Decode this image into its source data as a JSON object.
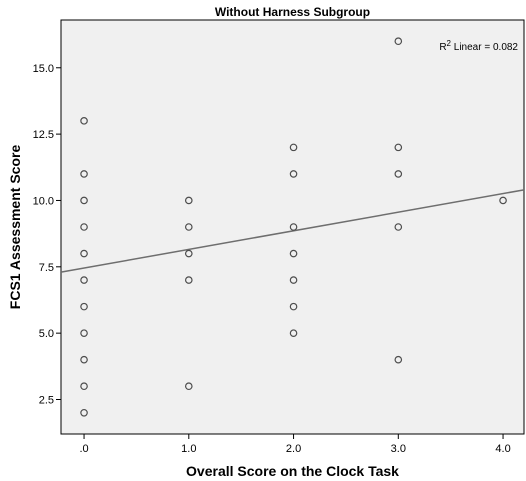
{
  "chart_data": {
    "type": "scatter",
    "title": "Without Harness Subgroup",
    "xlabel": "Overall Score on the Clock Task",
    "ylabel": "FCS1 Assessment Score",
    "xlim": [
      -0.22,
      4.2
    ],
    "ylim": [
      1.2,
      16.8
    ],
    "x_ticks": [
      {
        "value": 0,
        "label": ".0"
      },
      {
        "value": 1,
        "label": "1.0"
      },
      {
        "value": 2,
        "label": "2.0"
      },
      {
        "value": 3,
        "label": "3.0"
      },
      {
        "value": 4,
        "label": "4.0"
      }
    ],
    "y_ticks": [
      {
        "value": 2.5,
        "label": "2.5"
      },
      {
        "value": 5,
        "label": "5.0"
      },
      {
        "value": 7.5,
        "label": "7.5"
      },
      {
        "value": 10,
        "label": "10.0"
      },
      {
        "value": 12.5,
        "label": "12.5"
      },
      {
        "value": 15,
        "label": "15.0"
      }
    ],
    "grid": false,
    "background_color": "#f0f0f0",
    "point_color": "#4d4d4d",
    "line_color": "#6e6e6e",
    "points": [
      {
        "x": 0,
        "y": 2
      },
      {
        "x": 0,
        "y": 3
      },
      {
        "x": 0,
        "y": 4
      },
      {
        "x": 0,
        "y": 5
      },
      {
        "x": 0,
        "y": 6
      },
      {
        "x": 0,
        "y": 7
      },
      {
        "x": 0,
        "y": 8
      },
      {
        "x": 0,
        "y": 9
      },
      {
        "x": 0,
        "y": 10
      },
      {
        "x": 0,
        "y": 11
      },
      {
        "x": 0,
        "y": 13
      },
      {
        "x": 1,
        "y": 3
      },
      {
        "x": 1,
        "y": 7
      },
      {
        "x": 1,
        "y": 8
      },
      {
        "x": 1,
        "y": 9
      },
      {
        "x": 1,
        "y": 10
      },
      {
        "x": 2,
        "y": 5
      },
      {
        "x": 2,
        "y": 6
      },
      {
        "x": 2,
        "y": 7
      },
      {
        "x": 2,
        "y": 8
      },
      {
        "x": 2,
        "y": 9
      },
      {
        "x": 2,
        "y": 11
      },
      {
        "x": 2,
        "y": 12
      },
      {
        "x": 3,
        "y": 4
      },
      {
        "x": 3,
        "y": 9
      },
      {
        "x": 3,
        "y": 11
      },
      {
        "x": 3,
        "y": 12
      },
      {
        "x": 3,
        "y": 16
      },
      {
        "x": 4,
        "y": 10
      }
    ],
    "fit_line": {
      "type": "linear",
      "x": [
        -0.22,
        4.2
      ],
      "y": [
        7.3,
        10.4
      ]
    },
    "annotation": {
      "r2_prefix": "R",
      "r2_superscript": "2",
      "r2_suffix": " Linear = 0.082"
    }
  }
}
